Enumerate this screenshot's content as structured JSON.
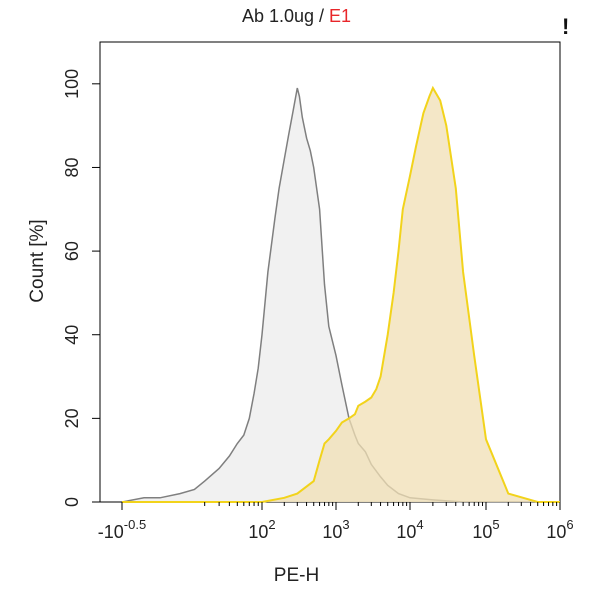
{
  "title": {
    "sample": "Ab 1.0ug",
    "separator": " / ",
    "series2_label": "E1"
  },
  "corner_mark": "!",
  "chart_data": {
    "type": "area",
    "title": "Ab 1.0ug / E1",
    "xlabel": "PE-H",
    "ylabel": "Count [%]",
    "xscale": "log (biexponential)",
    "ylim": [
      0,
      110
    ],
    "grid": false,
    "y_ticks": [
      0,
      20,
      40,
      60,
      80,
      100
    ],
    "x_ticks": [
      {
        "value": -3.16,
        "label_base": "-10",
        "label_exp": "-0.5"
      },
      {
        "value": 100,
        "label_base": "10",
        "label_exp": "2"
      },
      {
        "value": 1000,
        "label_base": "10",
        "label_exp": "3"
      },
      {
        "value": 10000,
        "label_base": "10",
        "label_exp": "4"
      },
      {
        "value": 100000,
        "label_base": "10",
        "label_exp": "5"
      },
      {
        "value": 1000000,
        "label_base": "10",
        "label_exp": "6"
      }
    ],
    "colors": {
      "control": "#7f7f7f",
      "control_fill": "#ececec",
      "sample": "#f2d31b",
      "sample_fill": "#f0dfb4"
    },
    "series": [
      {
        "role": "control",
        "x": [
          -3.16,
          1,
          5,
          10,
          15,
          20,
          30,
          40,
          50,
          60,
          70,
          80,
          90,
          100,
          120,
          150,
          170,
          200,
          230,
          260,
          300,
          320,
          350,
          400,
          450,
          500,
          600,
          700,
          800,
          1000,
          1200,
          1500,
          1800,
          2000,
          2500,
          3000,
          4000,
          5000,
          7000,
          10000,
          20000,
          50000,
          100000,
          1000000
        ],
        "y": [
          0,
          1,
          1,
          2,
          3,
          5,
          8,
          11,
          14,
          16,
          20,
          26,
          32,
          40,
          55,
          68,
          75,
          82,
          88,
          93,
          99,
          97,
          92,
          87,
          84,
          80,
          70,
          52,
          42,
          35,
          28,
          20,
          16,
          14,
          12,
          9,
          6,
          4,
          2,
          1,
          0.5,
          0,
          0,
          0
        ]
      },
      {
        "role": "sample",
        "x": [
          -3.16,
          10,
          30,
          100,
          200,
          300,
          500,
          600,
          700,
          800,
          1000,
          1200,
          1500,
          1800,
          2000,
          2500,
          3000,
          3500,
          4000,
          5000,
          6000,
          7000,
          8000,
          10000,
          12000,
          15000,
          18000,
          20000,
          25000,
          30000,
          40000,
          50000,
          70000,
          100000,
          200000,
          500000,
          1000000
        ],
        "y": [
          0,
          0,
          0,
          0,
          1,
          2,
          5,
          10,
          14,
          15,
          17,
          19,
          20,
          21,
          23,
          24,
          25,
          27,
          30,
          40,
          50,
          60,
          70,
          78,
          85,
          93,
          97,
          99,
          96,
          90,
          75,
          55,
          35,
          15,
          2,
          0,
          0
        ]
      }
    ]
  }
}
